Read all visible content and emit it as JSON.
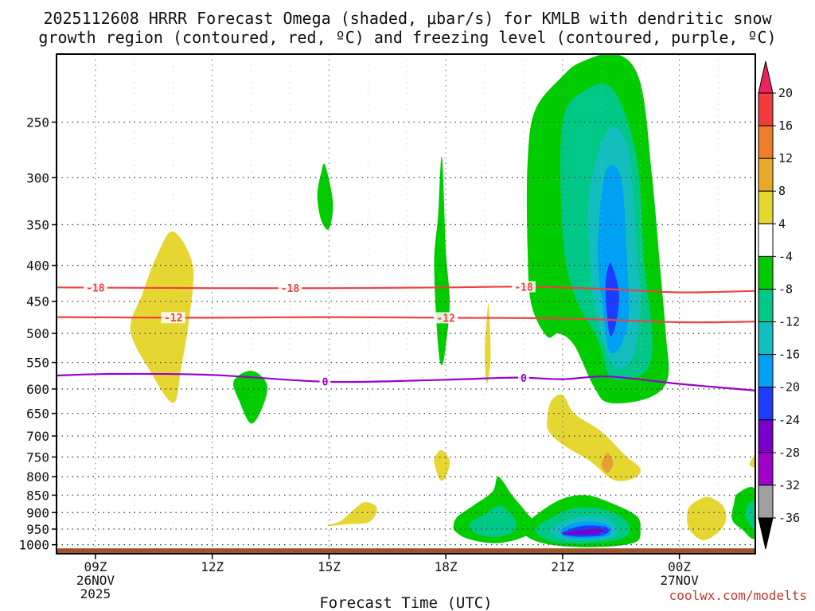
{
  "chart_data": {
    "type": "heatmap",
    "title_line1": "2025112608 HRRR Forecast Omega (shaded, μbar/s) for KMLB with dendritic snow",
    "title_line2": "growth region (contoured, red, ºC) and freezing level (contoured, purple, ºC)",
    "xlabel": "Forecast Time (UTC)",
    "credit": "coolwx.com/modelts",
    "x_ticks": [
      {
        "hour": 9,
        "line1": "09Z",
        "line2": "26NOV",
        "line3": "2025"
      },
      {
        "hour": 12,
        "line1": "12Z"
      },
      {
        "hour": 15,
        "line1": "15Z"
      },
      {
        "hour": 18,
        "line1": "18Z"
      },
      {
        "hour": 21,
        "line1": "21Z"
      },
      {
        "hour": 24,
        "line1": "00Z",
        "line2": "27NOV"
      }
    ],
    "x_range_hours": [
      8.0,
      25.95
    ],
    "y_ticks": [
      250,
      300,
      350,
      400,
      450,
      500,
      550,
      600,
      650,
      700,
      750,
      800,
      850,
      900,
      950,
      1000
    ],
    "y_range_hpa": [
      200,
      1030
    ],
    "colorbar_labels": [
      20,
      16,
      12,
      8,
      4,
      -4,
      -8,
      -12,
      -16,
      -20,
      -24,
      -28,
      -32,
      -36
    ],
    "colorbar_colors": [
      "#e8245a",
      "#f03c3c",
      "#f07e28",
      "#e8aa28",
      "#e6d632",
      "#ffffff",
      "#00cc00",
      "#00c887",
      "#14bebe",
      "#00a0f5",
      "#1e3cff",
      "#7800c8",
      "#a000c8",
      "#a0a0a0",
      "#000000"
    ],
    "contours": [
      {
        "label": "-18",
        "color": "#ee4040",
        "points": [
          [
            8.0,
            430
          ],
          [
            12,
            431
          ],
          [
            15,
            431
          ],
          [
            18,
            430
          ],
          [
            20,
            429
          ],
          [
            22,
            432
          ],
          [
            24,
            437
          ],
          [
            25.95,
            435
          ]
        ],
        "labels_at": [
          9.0,
          14.0,
          20.0
        ]
      },
      {
        "label": "-12",
        "color": "#ee4040",
        "points": [
          [
            8.0,
            474
          ],
          [
            12,
            475
          ],
          [
            15,
            474
          ],
          [
            18,
            475
          ],
          [
            21,
            476
          ],
          [
            24,
            482
          ],
          [
            25.95,
            481
          ]
        ],
        "labels_at": [
          11.0,
          18.0
        ]
      },
      {
        "label": "0",
        "color": "#9900cc",
        "points": [
          [
            8.0,
            574
          ],
          [
            9.5,
            571
          ],
          [
            12,
            573
          ],
          [
            15,
            586
          ],
          [
            18,
            582
          ],
          [
            19.8,
            578
          ],
          [
            21,
            581
          ],
          [
            22.2,
            576
          ],
          [
            24,
            590
          ],
          [
            25.95,
            603
          ]
        ],
        "labels_at": [
          14.9,
          20.0
        ]
      }
    ],
    "omega_regions": [
      {
        "name": "pos-a",
        "color": "#e6d632",
        "points": [
          [
            9.9,
            495
          ],
          [
            10.2,
            440
          ],
          [
            10.6,
            385
          ],
          [
            11,
            358
          ],
          [
            11.5,
            400
          ],
          [
            11.4,
            480
          ],
          [
            11.2,
            560
          ],
          [
            11.0,
            628
          ],
          [
            10.4,
            565
          ]
        ]
      },
      {
        "name": "neg-b",
        "color": "#00cc00",
        "points": [
          [
            12.55,
            585
          ],
          [
            13.0,
            565
          ],
          [
            13.4,
            590
          ],
          [
            13.3,
            635
          ],
          [
            13.0,
            672
          ],
          [
            12.7,
            625
          ]
        ]
      },
      {
        "name": "neg-c",
        "color": "#00cc00",
        "points": [
          [
            14.7,
            318
          ],
          [
            14.8,
            295
          ],
          [
            14.9,
            288
          ],
          [
            15.1,
            325
          ],
          [
            15.0,
            355
          ],
          [
            14.8,
            345
          ]
        ]
      },
      {
        "name": "neg-d",
        "color": "#00cc00",
        "points": [
          [
            17.7,
            400
          ],
          [
            17.8,
            340
          ],
          [
            17.9,
            280
          ],
          [
            18.0,
            380
          ],
          [
            18.1,
            450
          ],
          [
            18.0,
            520
          ],
          [
            17.9,
            555
          ],
          [
            17.8,
            520
          ]
        ]
      },
      {
        "name": "pos-e",
        "color": "#e6d632",
        "points": [
          [
            19.0,
            530
          ],
          [
            19.05,
            480
          ],
          [
            19.1,
            455
          ],
          [
            19.15,
            540
          ],
          [
            19.05,
            590
          ]
        ]
      },
      {
        "name": "neg-f",
        "color": "#00cc00",
        "points": [
          [
            20.1,
            285
          ],
          [
            20.3,
            240
          ],
          [
            21.0,
            215
          ],
          [
            21.5,
            205
          ],
          [
            22.4,
            200
          ],
          [
            23.0,
            220
          ],
          [
            23.3,
            300
          ],
          [
            23.5,
            400
          ],
          [
            23.65,
            500
          ],
          [
            23.7,
            580
          ],
          [
            23.2,
            618
          ],
          [
            22.2,
            628
          ],
          [
            21.8,
            595
          ],
          [
            21.3,
            520
          ],
          [
            20.9,
            500
          ],
          [
            20.6,
            505
          ],
          [
            20.2,
            455
          ],
          [
            20.1,
            380
          ]
        ]
      },
      {
        "name": "neg-g",
        "color": "#00c887",
        "points": [
          [
            21.0,
            250
          ],
          [
            21.6,
            225
          ],
          [
            22.3,
            225
          ],
          [
            22.9,
            280
          ],
          [
            23.1,
            400
          ],
          [
            23.3,
            500
          ],
          [
            23.2,
            560
          ],
          [
            22.7,
            580
          ],
          [
            22.2,
            575
          ],
          [
            21.9,
            510
          ],
          [
            21.3,
            440
          ],
          [
            21.0,
            360
          ]
        ]
      },
      {
        "name": "neg-h",
        "color": "#14bebe",
        "points": [
          [
            21.7,
            310
          ],
          [
            22.2,
            255
          ],
          [
            22.7,
            275
          ],
          [
            22.9,
            380
          ],
          [
            23.0,
            460
          ],
          [
            22.8,
            540
          ],
          [
            22.3,
            555
          ],
          [
            21.9,
            480
          ],
          [
            21.7,
            400
          ]
        ]
      },
      {
        "name": "neg-i",
        "color": "#00a0f5",
        "points": [
          [
            21.9,
            380
          ],
          [
            22.1,
            295
          ],
          [
            22.5,
            300
          ],
          [
            22.65,
            390
          ],
          [
            22.7,
            470
          ],
          [
            22.5,
            520
          ],
          [
            22.2,
            530
          ],
          [
            22.05,
            470
          ]
        ]
      },
      {
        "name": "neg-j",
        "color": "#1e3cff",
        "points": [
          [
            22.1,
            430
          ],
          [
            22.2,
            398
          ],
          [
            22.3,
            405
          ],
          [
            22.45,
            440
          ],
          [
            22.35,
            490
          ],
          [
            22.2,
            500
          ]
        ]
      },
      {
        "name": "pos-k",
        "color": "#e6d632",
        "points": [
          [
            20.6,
            665
          ],
          [
            20.7,
            625
          ],
          [
            21.0,
            612
          ],
          [
            21.3,
            650
          ],
          [
            22.0,
            690
          ],
          [
            22.6,
            745
          ],
          [
            23.0,
            780
          ],
          [
            22.8,
            805
          ],
          [
            22.3,
            808
          ],
          [
            21.7,
            760
          ],
          [
            21.0,
            720
          ],
          [
            20.65,
            690
          ]
        ]
      },
      {
        "name": "pos-l",
        "color": "#e6a032",
        "points": [
          [
            22.0,
            768
          ],
          [
            22.15,
            740
          ],
          [
            22.3,
            765
          ],
          [
            22.15,
            790
          ]
        ]
      },
      {
        "name": "pos-m",
        "color": "#e6d632",
        "points": [
          [
            17.7,
            763
          ],
          [
            17.75,
            745
          ],
          [
            17.9,
            733
          ],
          [
            18.1,
            760
          ],
          [
            18.0,
            800
          ],
          [
            17.85,
            808
          ]
        ]
      },
      {
        "name": "pos-n",
        "color": "#e6d632",
        "points": [
          [
            14.95,
            940
          ],
          [
            15.3,
            925
          ],
          [
            15.6,
            895
          ],
          [
            15.9,
            870
          ],
          [
            16.2,
            880
          ],
          [
            16.2,
            905
          ],
          [
            16.0,
            930
          ],
          [
            15.5,
            935
          ]
        ]
      },
      {
        "name": "neg-o",
        "color": "#00cc00",
        "points": [
          [
            18.2,
            938
          ],
          [
            18.3,
            912
          ],
          [
            18.7,
            880
          ],
          [
            19.2,
            840
          ],
          [
            19.35,
            800
          ],
          [
            19.7,
            850
          ],
          [
            20.0,
            890
          ],
          [
            20.3,
            940
          ],
          [
            20.0,
            975
          ],
          [
            19.3,
            995
          ],
          [
            18.6,
            982
          ],
          [
            18.25,
            958
          ]
        ]
      },
      {
        "name": "neg-p",
        "color": "#00c887",
        "points": [
          [
            18.6,
            935
          ],
          [
            19.0,
            905
          ],
          [
            19.4,
            880
          ],
          [
            19.8,
            925
          ],
          [
            19.7,
            960
          ],
          [
            19.3,
            975
          ],
          [
            18.8,
            965
          ]
        ]
      },
      {
        "name": "neg-q",
        "color": "#00cc00",
        "points": [
          [
            20.0,
            945
          ],
          [
            20.4,
            900
          ],
          [
            21.0,
            860
          ],
          [
            21.6,
            850
          ],
          [
            22.2,
            870
          ],
          [
            22.9,
            910
          ],
          [
            23.0,
            955
          ],
          [
            22.9,
            990
          ],
          [
            22.3,
            1005
          ],
          [
            21.4,
            1008
          ],
          [
            20.6,
            998
          ],
          [
            20.1,
            975
          ]
        ]
      },
      {
        "name": "neg-r",
        "color": "#00c887",
        "points": [
          [
            20.3,
            950
          ],
          [
            20.8,
            910
          ],
          [
            21.4,
            885
          ],
          [
            22.2,
            895
          ],
          [
            22.7,
            935
          ],
          [
            22.6,
            975
          ],
          [
            22.0,
            992
          ],
          [
            21.2,
            995
          ],
          [
            20.6,
            985
          ]
        ]
      },
      {
        "name": "neg-s",
        "color": "#14bebe",
        "points": [
          [
            20.7,
            950
          ],
          [
            21.3,
            915
          ],
          [
            22.1,
            915
          ],
          [
            22.4,
            948
          ],
          [
            22.3,
            975
          ],
          [
            21.8,
            985
          ],
          [
            21.1,
            985
          ],
          [
            20.8,
            970
          ]
        ]
      },
      {
        "name": "neg-t",
        "color": "#00a0f5",
        "points": [
          [
            20.95,
            953
          ],
          [
            21.4,
            928
          ],
          [
            22.0,
            930
          ],
          [
            22.25,
            950
          ],
          [
            22.15,
            972
          ],
          [
            21.6,
            980
          ],
          [
            21.1,
            976
          ]
        ]
      },
      {
        "name": "neg-u",
        "color": "#1e3cff",
        "points": [
          [
            21.0,
            960
          ],
          [
            21.5,
            940
          ],
          [
            22.05,
            942
          ],
          [
            22.2,
            955
          ],
          [
            22.0,
            970
          ],
          [
            21.5,
            974
          ],
          [
            21.1,
            970
          ]
        ]
      },
      {
        "name": "neg-v",
        "color": "#7800c8",
        "points": [
          [
            21.0,
            965
          ],
          [
            21.4,
            955
          ],
          [
            21.95,
            950
          ],
          [
            22.05,
            958
          ],
          [
            21.8,
            965
          ],
          [
            21.3,
            968
          ]
        ]
      },
      {
        "name": "pos-w",
        "color": "#e6d632",
        "points": [
          [
            24.3,
            878
          ],
          [
            24.7,
            855
          ],
          [
            25.1,
            878
          ],
          [
            25.2,
            920
          ],
          [
            25.0,
            960
          ],
          [
            24.6,
            985
          ],
          [
            24.25,
            950
          ],
          [
            24.2,
            905
          ]
        ]
      },
      {
        "name": "neg-x",
        "color": "#00cc00",
        "points": [
          [
            25.95,
            835
          ],
          [
            25.5,
            845
          ],
          [
            25.4,
            875
          ],
          [
            25.35,
            920
          ],
          [
            25.6,
            950
          ],
          [
            25.95,
            975
          ]
        ]
      },
      {
        "name": "neg-y",
        "color": "#00c887",
        "points": [
          [
            25.95,
            870
          ],
          [
            25.75,
            880
          ],
          [
            25.7,
            905
          ],
          [
            25.8,
            935
          ],
          [
            25.95,
            945
          ]
        ]
      },
      {
        "name": "pos-z",
        "color": "#e6d632",
        "points": [
          [
            25.95,
            745
          ],
          [
            25.8,
            768
          ],
          [
            25.95,
            775
          ]
        ]
      }
    ],
    "ground_band": {
      "color": "#a0522d",
      "pressure": [
        1012,
        1030
      ]
    }
  }
}
